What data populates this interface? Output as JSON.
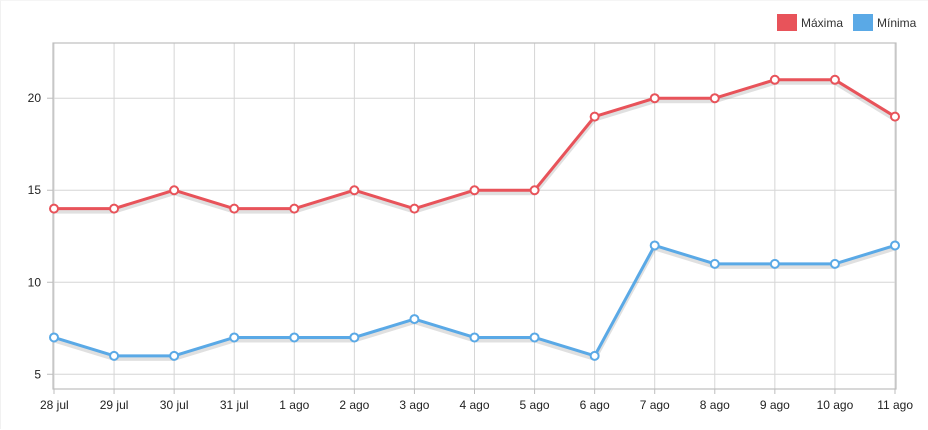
{
  "chart_data": {
    "type": "line",
    "title": "",
    "xlabel": "",
    "ylabel": "",
    "categories": [
      "28 jul",
      "29 jul",
      "30 jul",
      "31 jul",
      "1 ago",
      "2 ago",
      "3 ago",
      "4 ago",
      "5 ago",
      "6 ago",
      "7 ago",
      "8 ago",
      "9 ago",
      "10 ago",
      "11 ago"
    ],
    "series": [
      {
        "name": "Máxima",
        "color": "#e8535a",
        "values": [
          14,
          14,
          15,
          14,
          14,
          15,
          14,
          15,
          15,
          19,
          20,
          20,
          21,
          21,
          19
        ]
      },
      {
        "name": "Mínima",
        "color": "#5aa9e6",
        "values": [
          7,
          6,
          6,
          7,
          7,
          7,
          8,
          7,
          7,
          6,
          12,
          11,
          11,
          11,
          12
        ]
      }
    ],
    "yticks": [
      5,
      10,
      15,
      20
    ],
    "ylim": [
      4.2,
      23
    ],
    "grid": true,
    "legend_position": "top-right"
  }
}
